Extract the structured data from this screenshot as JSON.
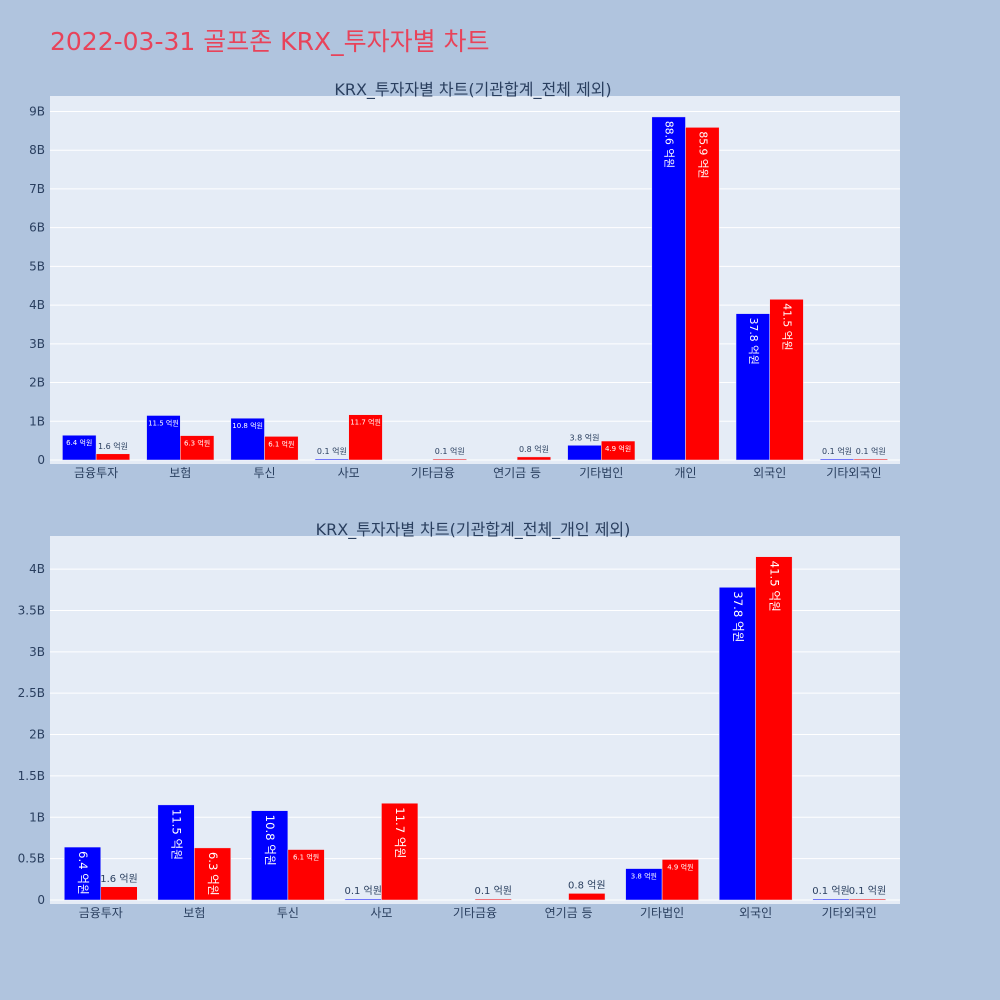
{
  "page": {
    "title": "2022-03-31 골프존 KRX_투자자별 차트"
  },
  "colors": {
    "buy": "#0000ff",
    "sell": "#ff0000",
    "plot_bg": "#e5ecf6",
    "page_bg": "#b0c4de",
    "title": "#e8435a"
  },
  "chart_data": [
    {
      "type": "bar",
      "title": "KRX_투자자별 차트(기관합계_전체 제외)",
      "categories": [
        "금융투자",
        "보험",
        "투신",
        "사모",
        "기타금융",
        "연기금 등",
        "기타법인",
        "개인",
        "외국인",
        "기타외국인"
      ],
      "ylim": [
        0,
        9400000000
      ],
      "yticks": [
        0,
        1000000000,
        2000000000,
        3000000000,
        4000000000,
        5000000000,
        6000000000,
        7000000000,
        8000000000,
        9000000000
      ],
      "ytick_labels": [
        "0",
        "1B",
        "2B",
        "3B",
        "4B",
        "5B",
        "6B",
        "7B",
        "8B",
        "9B"
      ],
      "grid": true,
      "series": [
        {
          "color": "#0000ff",
          "values": [
            640000000,
            1150000000,
            1080000000,
            10000000,
            0,
            0,
            380000000,
            8860000000,
            3780000000,
            10000000
          ],
          "labels": [
            "6.4 억원",
            "11.5 억원",
            "10.8 억원",
            "0.1 억원",
            "",
            "",
            "3.8 억원",
            "88.6 억원",
            "37.8 억원",
            "0.1 억원"
          ]
        },
        {
          "color": "#ff0000",
          "values": [
            160000000,
            630000000,
            610000000,
            1170000000,
            10000000,
            80000000,
            490000000,
            8590000000,
            4150000000,
            10000000
          ],
          "labels": [
            "1.6 억원",
            "6.3 억원",
            "6.1 억원",
            "11.7 억원",
            "0.1 억원",
            "0.8 억원",
            "4.9 억원",
            "85.9 억원",
            "41.5 억원",
            "0.1 억원"
          ]
        }
      ]
    },
    {
      "type": "bar",
      "title": "KRX_투자자별 차트(기관합계_전체_개인 제외)",
      "categories": [
        "금융투자",
        "보험",
        "투신",
        "사모",
        "기타금융",
        "연기금 등",
        "기타법인",
        "외국인",
        "기타외국인"
      ],
      "ylim": [
        0,
        4400000000
      ],
      "yticks": [
        0,
        500000000,
        1000000000,
        1500000000,
        2000000000,
        2500000000,
        3000000000,
        3500000000,
        4000000000
      ],
      "ytick_labels": [
        "0",
        "0.5B",
        "1B",
        "1.5B",
        "2B",
        "2.5B",
        "3B",
        "3.5B",
        "4B"
      ],
      "grid": true,
      "series": [
        {
          "color": "#0000ff",
          "values": [
            640000000,
            1150000000,
            1080000000,
            10000000,
            0,
            0,
            380000000,
            3780000000,
            10000000
          ],
          "labels": [
            "6.4 억원",
            "11.5 억원",
            "10.8 억원",
            "0.1 억원",
            "",
            "",
            "3.8 억원",
            "37.8 억원",
            "0.1 억원"
          ]
        },
        {
          "color": "#ff0000",
          "values": [
            160000000,
            630000000,
            610000000,
            1170000000,
            10000000,
            80000000,
            490000000,
            4150000000,
            10000000
          ],
          "labels": [
            "1.6 억원",
            "6.3 억원",
            "6.1 억원",
            "11.7 억원",
            "0.1 억원",
            "0.8 억원",
            "4.9 억원",
            "41.5 억원",
            "0.1 억원"
          ]
        }
      ]
    }
  ]
}
